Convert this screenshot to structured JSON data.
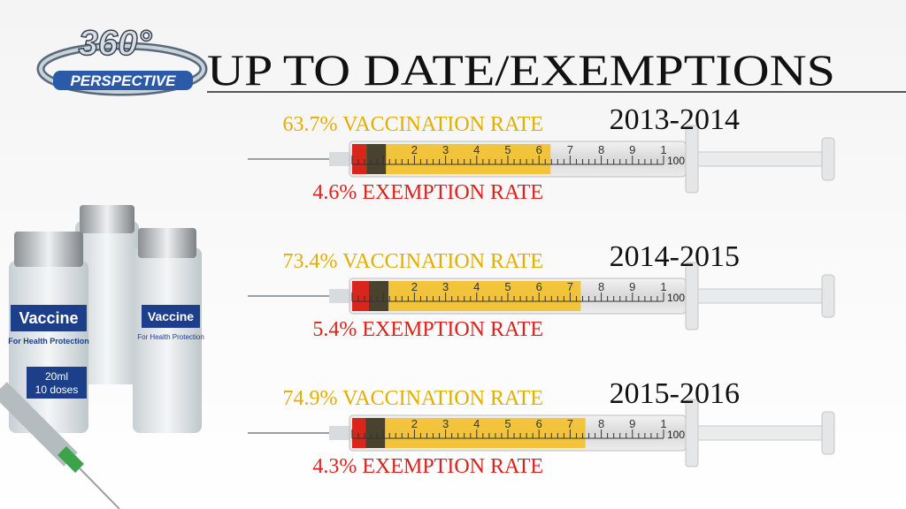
{
  "logo": {
    "number": "360°",
    "word": "PERSPECTIVE"
  },
  "title": "UP TO DATE/EXEMPTIONS",
  "scale": [
    "2",
    "3",
    "4",
    "5",
    "6",
    "7",
    "8",
    "9",
    "1"
  ],
  "scale_end": "100%",
  "vial": {
    "brand": "Vaccine",
    "subtitle": "For Health Protection",
    "volume": "20ml",
    "doses": "10 doses"
  },
  "rows": [
    {
      "year": "2013-2014",
      "vaccination": {
        "value": 63.7,
        "label": "63.7% VACCINATION RATE"
      },
      "exemption": {
        "value": 4.6,
        "label": "4.6% EXEMPTION RATE"
      }
    },
    {
      "year": "2014-2015",
      "vaccination": {
        "value": 73.4,
        "label": "73.4% VACCINATION RATE"
      },
      "exemption": {
        "value": 5.4,
        "label": "5.4% EXEMPTION RATE"
      }
    },
    {
      "year": "2015-2016",
      "vaccination": {
        "value": 74.9,
        "label": "74.9% VACCINATION RATE"
      },
      "exemption": {
        "value": 4.3,
        "label": "4.3% EXEMPTION RATE"
      }
    }
  ]
}
